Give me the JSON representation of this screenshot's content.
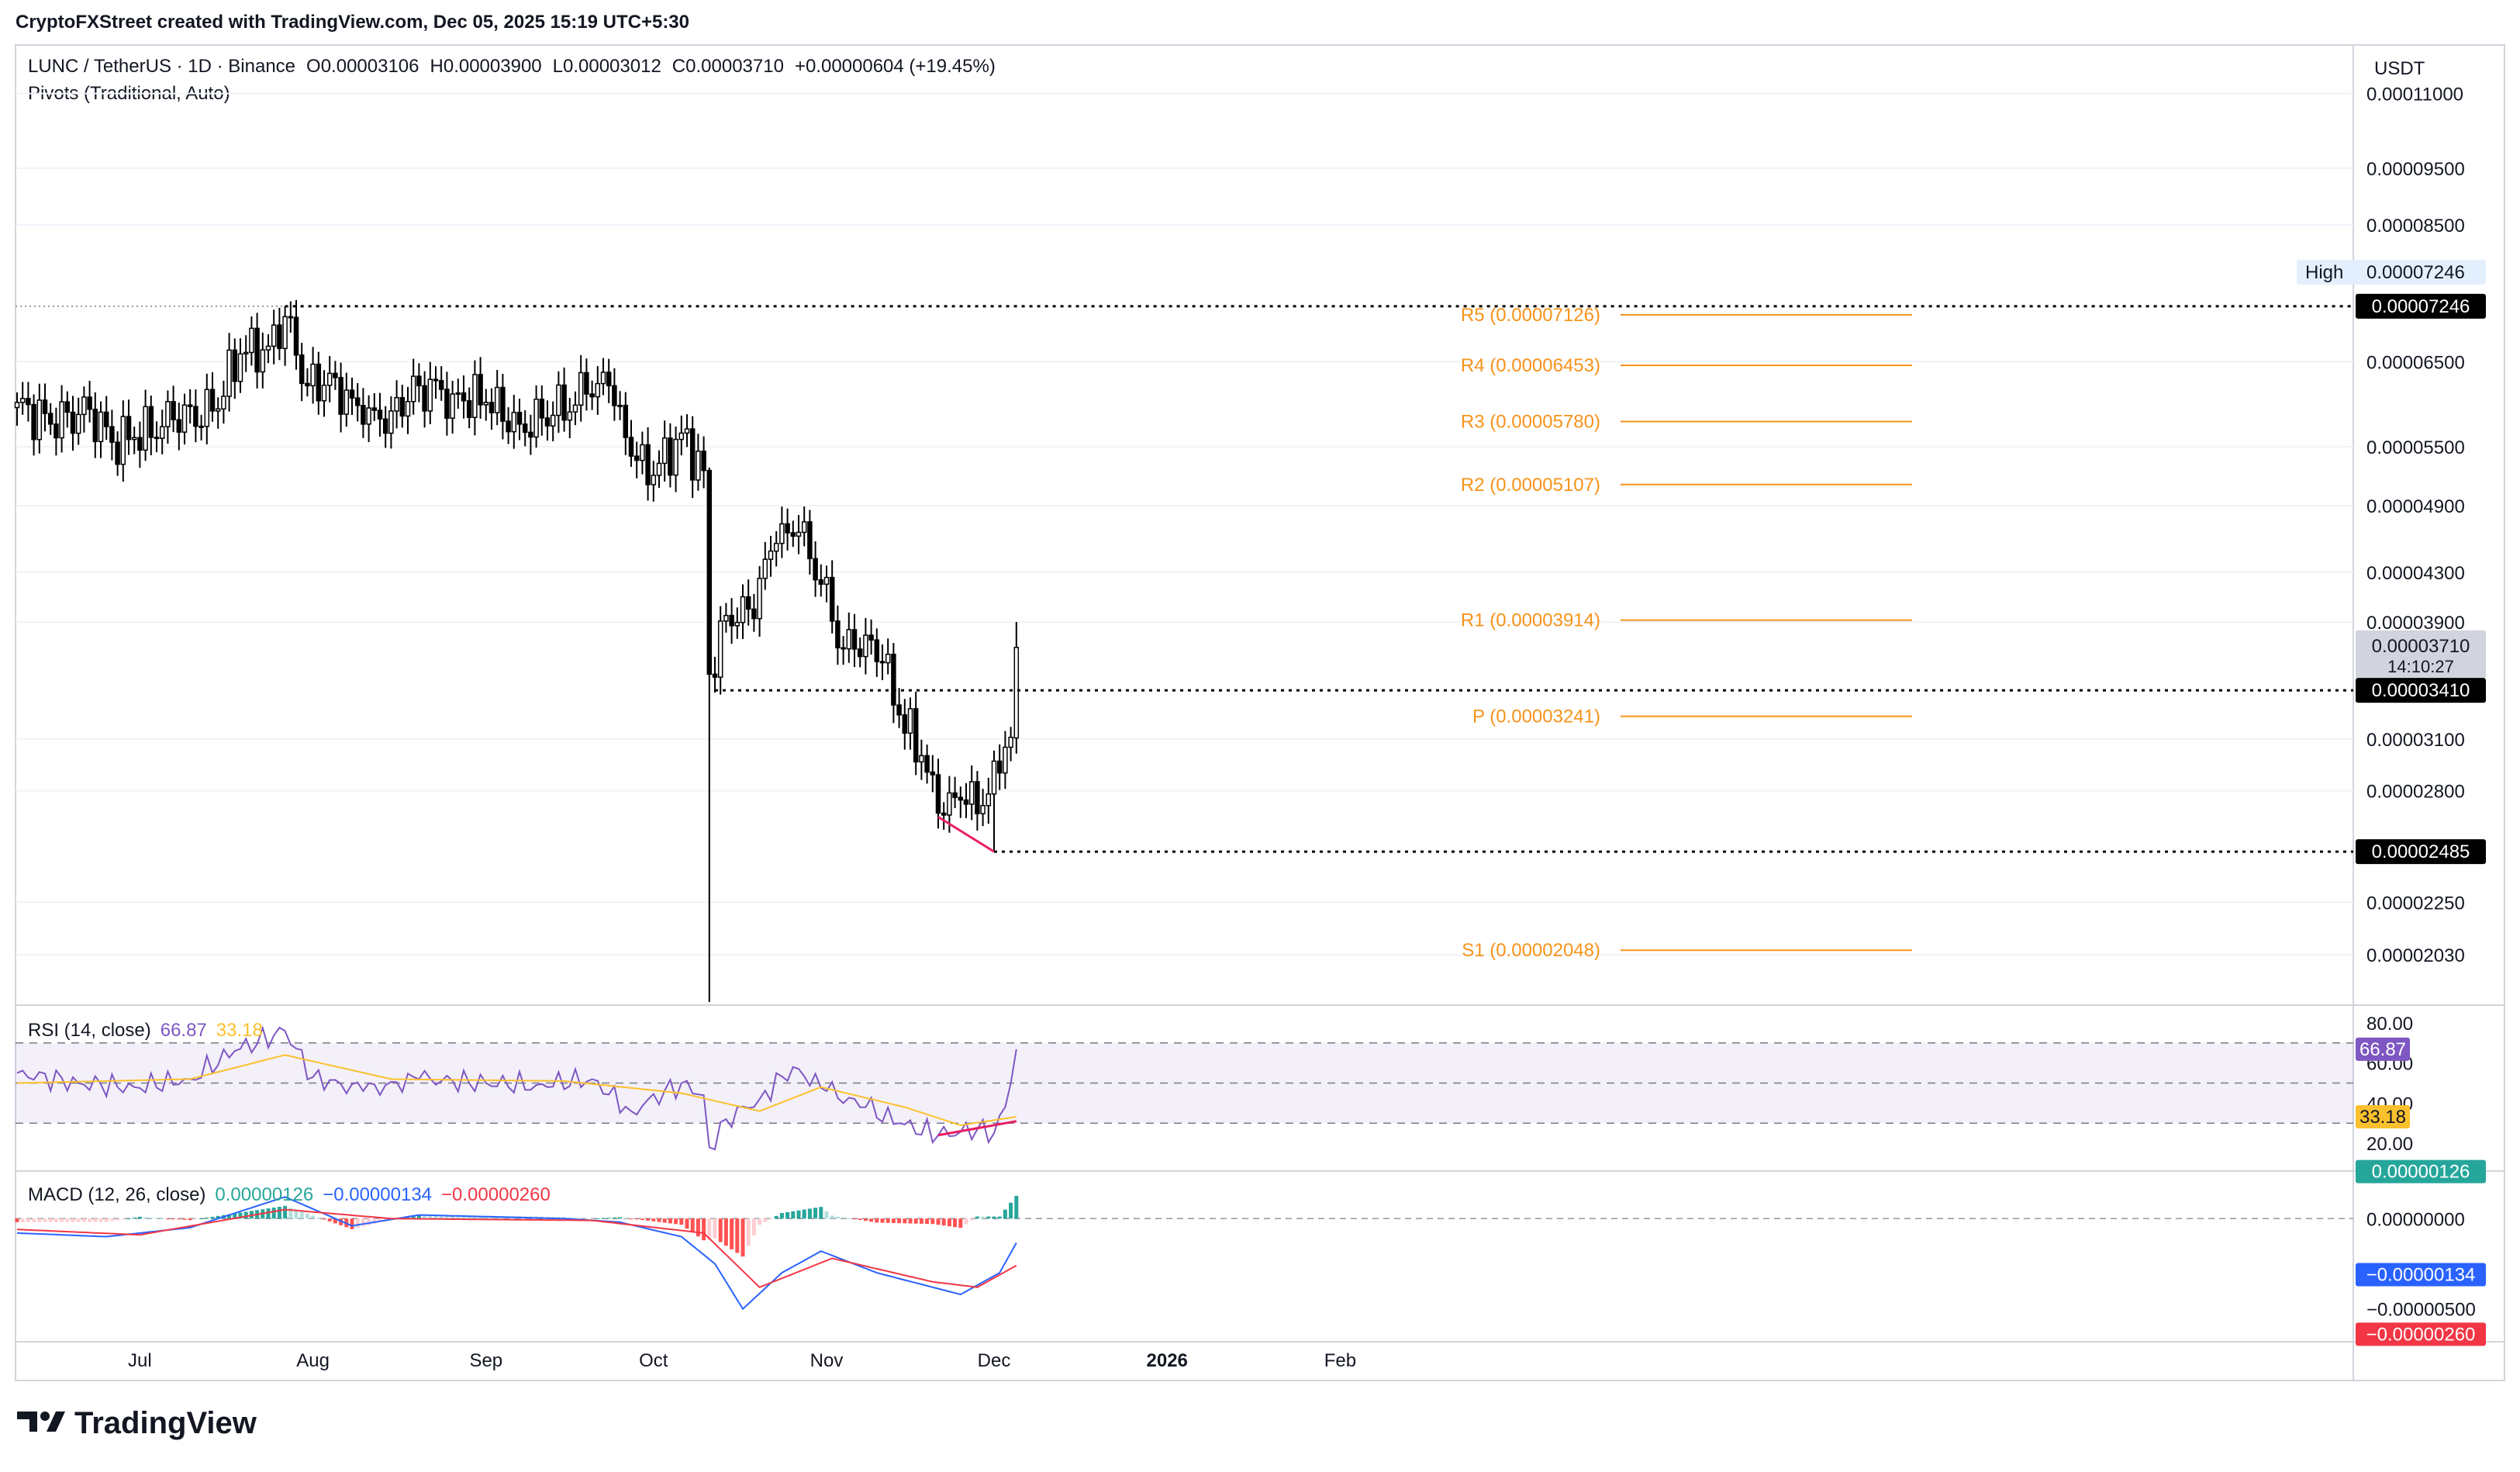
{
  "header": {
    "attribution": "CryptoFXStreet created with TradingView.com, Dec 05, 2025 15:19 UTC+5:30"
  },
  "legend": {
    "symbol_line": "LUNC / TetherUS · 1D · Binance",
    "o_label": "O",
    "o_value": "0.00003106",
    "h_label": "H",
    "h_value": "0.00003900",
    "l_label": "L",
    "l_value": "0.00003012",
    "c_label": "C",
    "c_value": "0.00003710",
    "change": "+0.00000604 (+19.45%)",
    "pivots": "Pivots (Traditional, Auto)"
  },
  "currency": "USDT",
  "price_axis": {
    "ticks": [
      "0.00011000",
      "0.00009500",
      "0.00008500",
      "0.00006500",
      "0.00005500",
      "0.00004900",
      "0.00004300",
      "0.00003900",
      "0.00003100",
      "0.00002800",
      "0.00002250",
      "0.00002030"
    ],
    "high_label": "High",
    "high_value": "0.00007246",
    "high_line_value": "0.00007246",
    "last_price": "0.00003710",
    "countdown": "14:10:27",
    "support_line": "0.00003410",
    "low_line": "0.00002485"
  },
  "pivots": [
    {
      "label": "R5 (0.00007126)",
      "value": 7.126e-05
    },
    {
      "label": "R4 (0.00006453)",
      "value": 6.453e-05
    },
    {
      "label": "R3 (0.00005780)",
      "value": 5.78e-05
    },
    {
      "label": "R2 (0.00005107)",
      "value": 5.107e-05
    },
    {
      "label": "R1 (0.00003914)",
      "value": 3.914e-05
    },
    {
      "label": "P (0.00003241)",
      "value": 3.241e-05
    },
    {
      "label": "S1 (0.00002048)",
      "value": 2.048e-05
    }
  ],
  "rsi": {
    "title": "RSI (14, close)",
    "value": "66.87",
    "ma_value": "33.18",
    "ticks": [
      "80.00",
      "60.00",
      "40.00",
      "20.00"
    ],
    "badge_value": "66.87",
    "badge_ma": "33.18"
  },
  "macd": {
    "title": "MACD (12, 26, close)",
    "hist": "0.00000126",
    "macd": "−0.00000134",
    "signal": "−0.00000260",
    "ticks": [
      "0.00000000",
      "−0.00000500"
    ],
    "badge_hist": "0.00000126",
    "badge_macd": "−0.00000134",
    "badge_signal": "−0.00000260"
  },
  "time_axis": [
    "Jul",
    "Aug",
    "Sep",
    "Oct",
    "Nov",
    "Dec",
    "2026",
    "Feb"
  ],
  "brand": "TradingView",
  "colors": {
    "up": "#ffffff",
    "down": "#000000",
    "pivot": "#f7931a",
    "rsi": "#7e57c2",
    "rsi_ma": "#fbc02d",
    "macd_line": "#2962ff",
    "signal_line": "#f23645",
    "hist_up_strong": "#26a69a",
    "hist_up_weak": "#b2dfdb",
    "hist_down_strong": "#ff5252",
    "hist_down_weak": "#ffcdd2",
    "divergence": "#e91e63"
  },
  "chart_data": {
    "type": "candlestick",
    "title": "LUNC / TetherUS · 1D · Binance",
    "x_range": [
      "2025-06-09",
      "2026-02-28"
    ],
    "y_scale": "log",
    "ylim": [
      1.85e-05,
      0.000121
    ],
    "anchors": [
      [
        "2025-06-09",
        6e-05
      ],
      [
        "2025-06-15",
        5.75e-05
      ],
      [
        "2025-06-22",
        5.92e-05
      ],
      [
        "2025-06-26",
        5.55e-05
      ],
      [
        "2025-06-30",
        5.6e-05
      ],
      [
        "2025-07-07",
        5.8e-05
      ],
      [
        "2025-07-14",
        5.9e-05
      ],
      [
        "2025-07-19",
        6.6e-05
      ],
      [
        "2025-07-24",
        6.7e-05
      ],
      [
        "2025-07-27",
        7.1e-05
      ],
      [
        "2025-07-31",
        6.2e-05
      ],
      [
        "2025-08-05",
        6.3e-05
      ],
      [
        "2025-08-10",
        5.75e-05
      ],
      [
        "2025-08-15",
        5.9e-05
      ],
      [
        "2025-08-20",
        6.2e-05
      ],
      [
        "2025-08-26",
        6.1e-05
      ],
      [
        "2025-09-01",
        6e-05
      ],
      [
        "2025-09-07",
        5.75e-05
      ],
      [
        "2025-09-13",
        5.85e-05
      ],
      [
        "2025-09-19",
        6.1e-05
      ],
      [
        "2025-09-23",
        6.2e-05
      ],
      [
        "2025-09-27",
        5.4e-05
      ],
      [
        "2025-10-01",
        5.2e-05
      ],
      [
        "2025-10-06",
        5.65e-05
      ],
      [
        "2025-10-10",
        5.25e-05
      ],
      [
        "2025-10-11",
        3.52e-05
      ],
      [
        "2025-10-14",
        3.95e-05
      ],
      [
        "2025-10-18",
        4e-05
      ],
      [
        "2025-10-23",
        4.55e-05
      ],
      [
        "2025-10-27",
        4.65e-05
      ],
      [
        "2025-10-31",
        4.2e-05
      ],
      [
        "2025-11-04",
        3.7e-05
      ],
      [
        "2025-11-08",
        3.8e-05
      ],
      [
        "2025-11-11",
        3.6e-05
      ],
      [
        "2025-11-14",
        3.25e-05
      ],
      [
        "2025-11-18",
        3e-05
      ],
      [
        "2025-11-21",
        2.68e-05
      ],
      [
        "2025-11-25",
        2.75e-05
      ],
      [
        "2025-11-29",
        2.72e-05
      ],
      [
        "2025-12-02",
        2.9e-05
      ],
      [
        "2025-12-03",
        3.05e-05
      ],
      [
        "2025-12-04",
        3.11e-05
      ],
      [
        "2025-12-05",
        3.71e-05
      ]
    ],
    "key_candles": [
      {
        "date": "2025-07-27",
        "high": 7.246e-05
      },
      {
        "date": "2025-10-11",
        "open": 5.25e-05,
        "high": 5.28e-05,
        "low": 1.85e-05,
        "close": 3.52e-05
      },
      {
        "date": "2025-12-01",
        "low": 2.485e-05
      },
      {
        "date": "2025-12-05",
        "open": 3.106e-05,
        "high": 3.9e-05,
        "low": 3.012e-05,
        "close": 3.71e-05
      }
    ],
    "rsi_series": [
      [
        "2025-06-09",
        55
      ],
      [
        "2025-06-20",
        50
      ],
      [
        "2025-06-30",
        48
      ],
      [
        "2025-07-10",
        52
      ],
      [
        "2025-07-18",
        66
      ],
      [
        "2025-07-27",
        76
      ],
      [
        "2025-08-01",
        53
      ],
      [
        "2025-08-10",
        46
      ],
      [
        "2025-08-20",
        52
      ],
      [
        "2025-09-01",
        50
      ],
      [
        "2025-09-10",
        49
      ],
      [
        "2025-09-20",
        52
      ],
      [
        "2025-09-27",
        36
      ],
      [
        "2025-10-06",
        50
      ],
      [
        "2025-10-10",
        44
      ],
      [
        "2025-10-11",
        18
      ],
      [
        "2025-10-14",
        32
      ],
      [
        "2025-10-20",
        42
      ],
      [
        "2025-10-26",
        58
      ],
      [
        "2025-11-01",
        46
      ],
      [
        "2025-11-08",
        38
      ],
      [
        "2025-11-14",
        30
      ],
      [
        "2025-11-21",
        24
      ],
      [
        "2025-11-28",
        27
      ],
      [
        "2025-12-01",
        25
      ],
      [
        "2025-12-03",
        38
      ],
      [
        "2025-12-05",
        66.87
      ]
    ],
    "rsi_ma_series": [
      [
        "2025-06-09",
        50
      ],
      [
        "2025-07-10",
        52
      ],
      [
        "2025-07-27",
        64
      ],
      [
        "2025-08-15",
        52
      ],
      [
        "2025-09-15",
        51
      ],
      [
        "2025-10-06",
        45
      ],
      [
        "2025-10-20",
        36
      ],
      [
        "2025-10-31",
        48
      ],
      [
        "2025-11-15",
        38
      ],
      [
        "2025-11-25",
        29
      ],
      [
        "2025-12-05",
        33.18
      ]
    ],
    "rsi_levels": [
      70,
      50,
      30
    ],
    "divergence": {
      "from": "2025-11-21",
      "to": "2025-12-01"
    },
    "macd_line": [
      [
        "2025-06-09",
        -8e-07
      ],
      [
        "2025-06-25",
        -1e-06
      ],
      [
        "2025-07-10",
        -5e-07
      ],
      [
        "2025-07-27",
        1.2e-06
      ],
      [
        "2025-08-08",
        -4e-07
      ],
      [
        "2025-08-20",
        2e-07
      ],
      [
        "2025-09-15",
        0.0
      ],
      [
        "2025-09-25",
        -2e-07
      ],
      [
        "2025-10-06",
        -1e-06
      ],
      [
        "2025-10-12",
        -2.5e-06
      ],
      [
        "2025-10-17",
        -5e-06
      ],
      [
        "2025-10-24",
        -3e-06
      ],
      [
        "2025-10-31",
        -1.8e-06
      ],
      [
        "2025-11-10",
        -3e-06
      ],
      [
        "2025-11-25",
        -4.2e-06
      ],
      [
        "2025-12-02",
        -3e-06
      ],
      [
        "2025-12-05",
        -1.34e-06
      ]
    ],
    "signal_line": [
      [
        "2025-06-09",
        -6e-07
      ],
      [
        "2025-07-01",
        -9e-07
      ],
      [
        "2025-07-27",
        5e-07
      ],
      [
        "2025-08-15",
        0.0
      ],
      [
        "2025-09-20",
        -1e-07
      ],
      [
        "2025-10-10",
        -8e-07
      ],
      [
        "2025-10-20",
        -3.8e-06
      ],
      [
        "2025-11-02",
        -2.2e-06
      ],
      [
        "2025-11-20",
        -3.5e-06
      ],
      [
        "2025-11-28",
        -3.8e-06
      ],
      [
        "2025-12-05",
        -2.6e-06
      ]
    ],
    "macd_ylim": [
      -6.6e-06,
      2.2e-06
    ]
  }
}
